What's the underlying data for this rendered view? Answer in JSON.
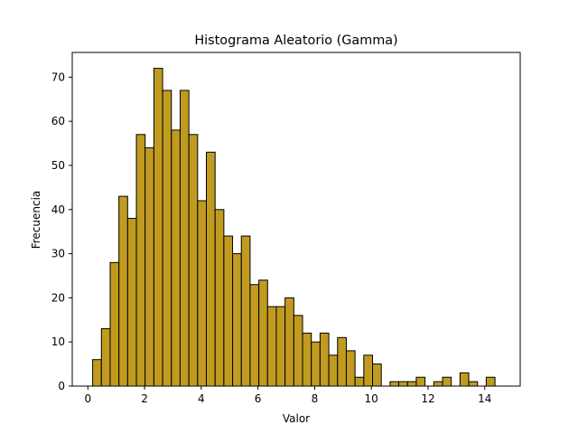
{
  "chart_data": {
    "type": "bar",
    "title": "Histograma Aleatorio (Gamma)",
    "xlabel": "Valor",
    "ylabel": "Frecuencia",
    "xlim": [
      -0.55,
      15.25
    ],
    "ylim": [
      0,
      75.6
    ],
    "xticks": [
      0,
      2,
      4,
      6,
      8,
      10,
      12,
      14
    ],
    "yticks": [
      0,
      10,
      20,
      30,
      40,
      50,
      60,
      70
    ],
    "bar_color": "#C09B1F",
    "edge_color": "#000000",
    "bin_start": 0.17,
    "bin_width": 0.3085,
    "values": [
      6,
      13,
      28,
      43,
      38,
      57,
      54,
      72,
      67,
      58,
      67,
      57,
      42,
      53,
      40,
      34,
      30,
      34,
      23,
      24,
      18,
      18,
      20,
      16,
      12,
      10,
      12,
      7,
      11,
      8,
      2,
      7,
      5,
      0,
      1,
      1,
      1,
      2,
      0,
      1,
      2,
      0,
      3,
      1,
      0,
      2
    ]
  }
}
